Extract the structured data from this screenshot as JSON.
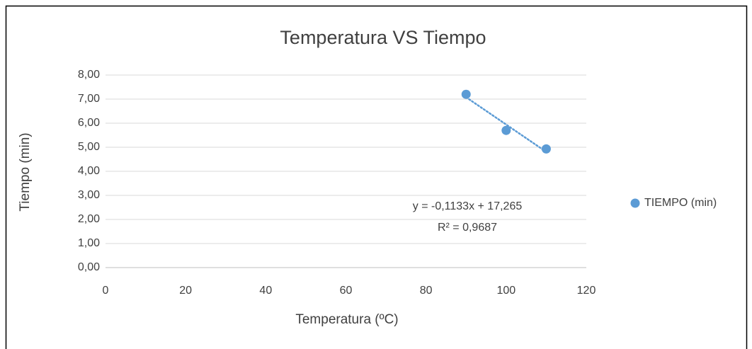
{
  "chart_data": {
    "type": "scatter",
    "title": "Temperatura VS Tiempo",
    "xlabel": "Temperatura (ºC)",
    "ylabel": "Tiempo (min)",
    "series": [
      {
        "name": "TIEMPO (min)",
        "color": "#5b9bd5",
        "x": [
          90,
          100,
          110
        ],
        "values": [
          7.2,
          5.7,
          4.93
        ]
      }
    ],
    "xlim": [
      0,
      120
    ],
    "xticks": [
      0,
      20,
      40,
      60,
      80,
      100,
      120
    ],
    "ylim": [
      0,
      8
    ],
    "yticks": [
      {
        "value": 0,
        "label": "0,00"
      },
      {
        "value": 1,
        "label": "1,00"
      },
      {
        "value": 2,
        "label": "2,00"
      },
      {
        "value": 3,
        "label": "3,00"
      },
      {
        "value": 4,
        "label": "4,00"
      },
      {
        "value": 5,
        "label": "5,00"
      },
      {
        "value": 6,
        "label": "6,00"
      },
      {
        "value": 7,
        "label": "7,00"
      },
      {
        "value": 8,
        "label": "8,00"
      }
    ],
    "grid": true,
    "trendline": "linear",
    "legend": "right",
    "annotations": [
      "y = -0,1133x + 17,265",
      "R² = 0,9687"
    ]
  }
}
